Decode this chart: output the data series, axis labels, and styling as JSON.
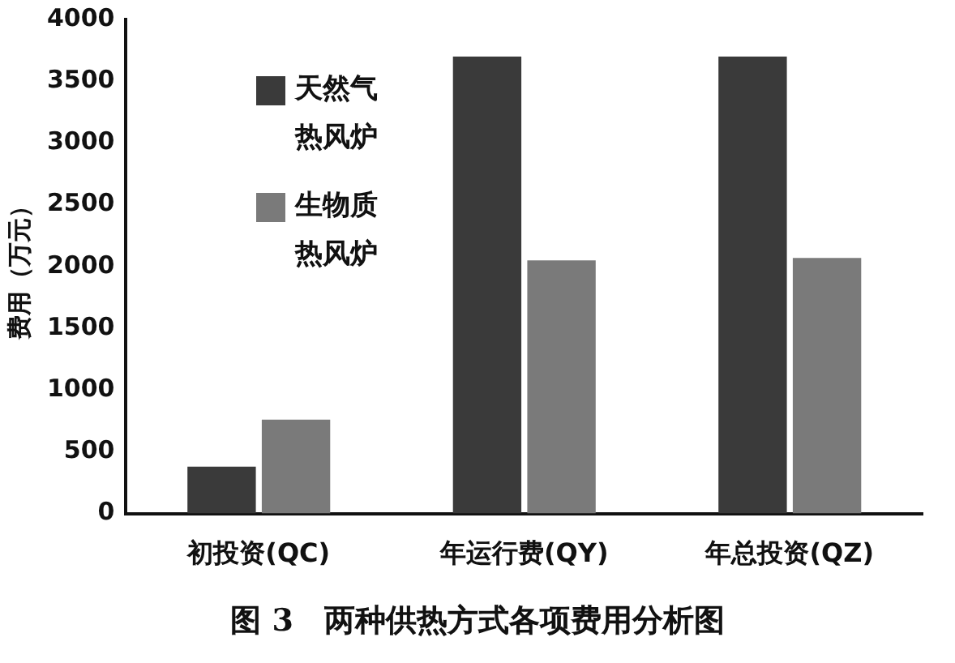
{
  "chart_data": {
    "type": "bar",
    "title": "图 3　两种供热方式各项费用分析图",
    "ylabel": "费用（万元）",
    "categories": [
      "初投资(QC)",
      "年运行费(QY)",
      "年总投资(QZ)"
    ],
    "series": [
      {
        "name": "天然气热风炉",
        "color": "#3a3a3a",
        "values": [
          380,
          3700,
          3700
        ]
      },
      {
        "name": "生物质热风炉",
        "color": "#7a7a7a",
        "values": [
          760,
          2050,
          2070
        ]
      }
    ],
    "ylim": [
      0,
      4000
    ],
    "yticks": [
      0,
      500,
      1000,
      1500,
      2000,
      2500,
      3000,
      3500,
      4000
    ],
    "grid": false,
    "legend": "top left"
  }
}
